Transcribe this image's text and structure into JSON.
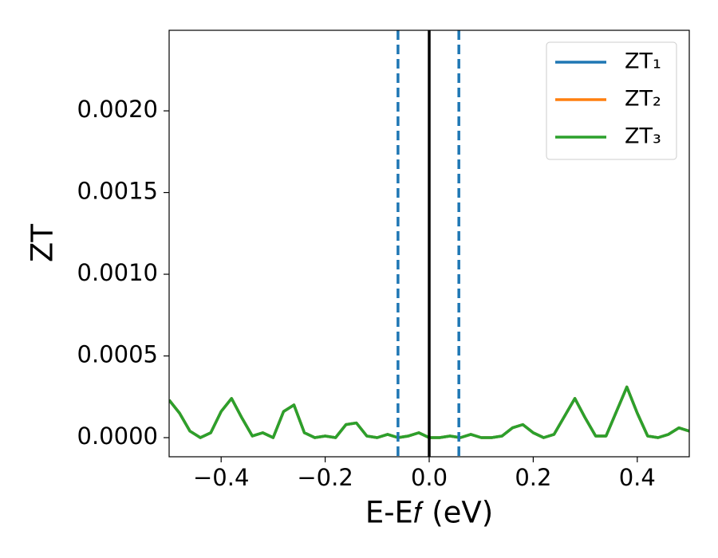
{
  "chart_data": {
    "type": "line",
    "xlabel": "E-E𝑓 (eV)",
    "ylabel": "ZT",
    "xlim": [
      -0.5,
      0.5
    ],
    "ylim": [
      -0.000117,
      0.002493
    ],
    "xticks": [
      {
        "value": -0.4,
        "label": "−0.4"
      },
      {
        "value": -0.2,
        "label": "−0.2"
      },
      {
        "value": 0.0,
        "label": "0.0"
      },
      0.2,
      0.4
    ],
    "yticks": [
      {
        "value": 0.0,
        "label": "0.0000"
      },
      {
        "value": 0.0005,
        "label": "0.0005"
      },
      {
        "value": 0.001,
        "label": "0.0010"
      },
      {
        "value": 0.0015,
        "label": "0.0015"
      },
      {
        "value": 0.002,
        "label": "0.0020"
      }
    ],
    "legend": "upper right",
    "vlines": [
      {
        "x": -0.06,
        "color": "#1f77b4",
        "style": "dashed"
      },
      {
        "x": 0.0,
        "color": "#000000",
        "style": "solid"
      },
      {
        "x": 0.057,
        "color": "#1f77b4",
        "style": "dashed"
      }
    ],
    "x": [
      -0.5,
      -0.48,
      -0.46,
      -0.44,
      -0.42,
      -0.4,
      -0.38,
      -0.36,
      -0.34,
      -0.32,
      -0.3,
      -0.28,
      -0.26,
      -0.24,
      -0.22,
      -0.2,
      -0.18,
      -0.16,
      -0.14,
      -0.12,
      -0.1,
      -0.08,
      -0.06,
      -0.04,
      -0.02,
      0.0,
      0.02,
      0.04,
      0.06,
      0.08,
      0.1,
      0.12,
      0.14,
      0.16,
      0.18,
      0.2,
      0.22,
      0.24,
      0.26,
      0.28,
      0.3,
      0.32,
      0.34,
      0.36,
      0.38,
      0.4,
      0.42,
      0.44,
      0.46,
      0.48,
      0.5
    ],
    "series": [
      {
        "name": "ZT₁",
        "color": "#1f77b4",
        "values": [
          0.00023,
          0.00015,
          4e-05,
          0.0,
          3e-05,
          0.00016,
          0.00024,
          0.00012,
          1e-05,
          3e-05,
          0.0,
          0.00016,
          0.0002,
          3e-05,
          0.0,
          1e-05,
          0.0,
          8e-05,
          9e-05,
          1e-05,
          0.0,
          2e-05,
          0.0,
          1e-05,
          3e-05,
          0.0,
          0.0,
          1e-05,
          0.0,
          2e-05,
          0.0,
          0.0,
          1e-05,
          6e-05,
          8e-05,
          3e-05,
          0.0,
          2e-05,
          0.00013,
          0.00024,
          0.00012,
          1e-05,
          1e-05,
          0.00016,
          0.00031,
          0.00015,
          1e-05,
          0.0,
          2e-05,
          6e-05,
          4e-05
        ]
      },
      {
        "name": "ZT₂",
        "color": "#ff7f0e",
        "values": [
          0.00023,
          0.00015,
          4e-05,
          0.0,
          3e-05,
          0.00016,
          0.00024,
          0.00012,
          1e-05,
          3e-05,
          0.0,
          0.00016,
          0.0002,
          3e-05,
          0.0,
          1e-05,
          0.0,
          8e-05,
          9e-05,
          1e-05,
          0.0,
          2e-05,
          0.0,
          1e-05,
          3e-05,
          0.0,
          0.0,
          1e-05,
          0.0,
          2e-05,
          0.0,
          0.0,
          1e-05,
          6e-05,
          8e-05,
          3e-05,
          0.0,
          2e-05,
          0.00013,
          0.00024,
          0.00012,
          1e-05,
          1e-05,
          0.00016,
          0.00031,
          0.00015,
          1e-05,
          0.0,
          2e-05,
          6e-05,
          4e-05
        ]
      },
      {
        "name": "ZT₃",
        "color": "#2ca02c",
        "values": [
          0.00023,
          0.00015,
          4e-05,
          0.0,
          3e-05,
          0.00016,
          0.00024,
          0.00012,
          1e-05,
          3e-05,
          0.0,
          0.00016,
          0.0002,
          3e-05,
          0.0,
          1e-05,
          0.0,
          8e-05,
          9e-05,
          1e-05,
          0.0,
          2e-05,
          0.0,
          1e-05,
          3e-05,
          0.0,
          0.0,
          1e-05,
          0.0,
          2e-05,
          0.0,
          0.0,
          1e-05,
          6e-05,
          8e-05,
          3e-05,
          0.0,
          2e-05,
          0.00013,
          0.00024,
          0.00012,
          1e-05,
          1e-05,
          0.00016,
          0.00031,
          0.00015,
          1e-05,
          0.0,
          2e-05,
          6e-05,
          4e-05
        ]
      }
    ]
  }
}
